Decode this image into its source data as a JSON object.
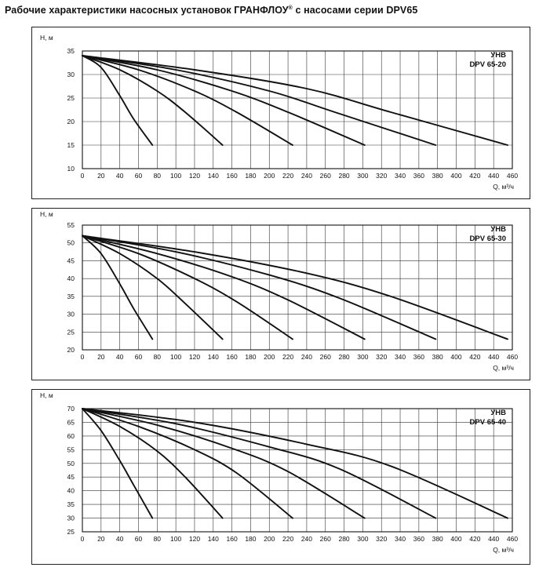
{
  "title": {
    "main": "Рабочие характеристики насосных установок  ГРАНФЛОУ",
    "mark": "®",
    "tail": " с насосами серии DPV65"
  },
  "chart_data": [
    {
      "type": "line",
      "model_line1": "УНВ",
      "model_line2": "DPV 65-20",
      "xlabel": "Q, м³/ч",
      "ylabel": "Н, м",
      "xlim": [
        0,
        460
      ],
      "ylim": [
        10,
        35
      ],
      "x_ticks": [
        0,
        20,
        40,
        60,
        80,
        100,
        120,
        140,
        160,
        180,
        200,
        220,
        240,
        260,
        280,
        300,
        320,
        340,
        360,
        380,
        400,
        420,
        440,
        460
      ],
      "y_ticks": [
        10,
        15,
        20,
        25,
        30,
        35
      ],
      "grid": true,
      "series": [
        {
          "points": [
            [
              0,
              34
            ],
            [
              20,
              31.5
            ],
            [
              40,
              25.5
            ],
            [
              55,
              20.5
            ],
            [
              75,
              15
            ]
          ]
        },
        {
          "points": [
            [
              0,
              34
            ],
            [
              40,
              31
            ],
            [
              80,
              26.5
            ],
            [
              110,
              22
            ],
            [
              150,
              15
            ]
          ]
        },
        {
          "points": [
            [
              0,
              34
            ],
            [
              60,
              31
            ],
            [
              120,
              26.5
            ],
            [
              165,
              22
            ],
            [
              225,
              15
            ]
          ]
        },
        {
          "points": [
            [
              0,
              34
            ],
            [
              80,
              31
            ],
            [
              160,
              26.5
            ],
            [
              220,
              22
            ],
            [
              302,
              15
            ]
          ]
        },
        {
          "points": [
            [
              0,
              34
            ],
            [
              100,
              31
            ],
            [
              200,
              26.5
            ],
            [
              270,
              22
            ],
            [
              378,
              15
            ]
          ]
        },
        {
          "points": [
            [
              0,
              34
            ],
            [
              120,
              31
            ],
            [
              240,
              27
            ],
            [
              330,
              22
            ],
            [
              455,
              15
            ]
          ]
        }
      ]
    },
    {
      "type": "line",
      "model_line1": "УНВ",
      "model_line2": "DPV 65-30",
      "xlabel": "Q, м³/ч",
      "ylabel": "Н, м",
      "xlim": [
        0,
        460
      ],
      "ylim": [
        20,
        55
      ],
      "x_ticks": [
        0,
        20,
        40,
        60,
        80,
        100,
        120,
        140,
        160,
        180,
        200,
        220,
        240,
        260,
        280,
        300,
        320,
        340,
        360,
        380,
        400,
        420,
        440,
        460
      ],
      "y_ticks": [
        20,
        25,
        30,
        35,
        40,
        45,
        50,
        55
      ],
      "grid": true,
      "series": [
        {
          "points": [
            [
              0,
              52
            ],
            [
              20,
              47
            ],
            [
              40,
              38.5
            ],
            [
              55,
              31.5
            ],
            [
              75,
              23
            ]
          ]
        },
        {
          "points": [
            [
              0,
              52
            ],
            [
              40,
              47
            ],
            [
              80,
              40
            ],
            [
              110,
              33
            ],
            [
              150,
              23
            ]
          ]
        },
        {
          "points": [
            [
              0,
              52
            ],
            [
              60,
              47
            ],
            [
              120,
              40
            ],
            [
              165,
              33.5
            ],
            [
              225,
              23
            ]
          ]
        },
        {
          "points": [
            [
              0,
              52
            ],
            [
              80,
              47
            ],
            [
              160,
              40.5
            ],
            [
              220,
              34
            ],
            [
              302,
              23
            ]
          ]
        },
        {
          "points": [
            [
              0,
              52
            ],
            [
              100,
              47.5
            ],
            [
              200,
              41
            ],
            [
              275,
              34.5
            ],
            [
              378,
              23
            ]
          ]
        },
        {
          "points": [
            [
              0,
              52
            ],
            [
              120,
              47.5
            ],
            [
              240,
              41.5
            ],
            [
              330,
              35
            ],
            [
              455,
              23
            ]
          ]
        }
      ]
    },
    {
      "type": "line",
      "model_line1": "УНВ",
      "model_line2": "DPV 65-40",
      "xlabel": "Q, м³/ч",
      "ylabel": "Н, м",
      "xlim": [
        0,
        460
      ],
      "ylim": [
        25,
        70
      ],
      "x_ticks": [
        0,
        20,
        40,
        60,
        80,
        100,
        120,
        140,
        160,
        180,
        200,
        220,
        240,
        260,
        280,
        300,
        320,
        340,
        360,
        380,
        400,
        420,
        440,
        460
      ],
      "y_ticks": [
        25,
        30,
        35,
        40,
        45,
        50,
        55,
        60,
        65,
        70
      ],
      "grid": true,
      "series": [
        {
          "points": [
            [
              0,
              70
            ],
            [
              20,
              62
            ],
            [
              40,
              51
            ],
            [
              55,
              42
            ],
            [
              75,
              30
            ]
          ]
        },
        {
          "points": [
            [
              0,
              70
            ],
            [
              40,
              63.5
            ],
            [
              80,
              54.5
            ],
            [
              110,
              45
            ],
            [
              150,
              30
            ]
          ]
        },
        {
          "points": [
            [
              0,
              70
            ],
            [
              60,
              63.5
            ],
            [
              120,
              55
            ],
            [
              165,
              46.5
            ],
            [
              225,
              30
            ]
          ]
        },
        {
          "points": [
            [
              0,
              70
            ],
            [
              80,
              64
            ],
            [
              160,
              55.5
            ],
            [
              220,
              47
            ],
            [
              302,
              30
            ]
          ]
        },
        {
          "points": [
            [
              0,
              70
            ],
            [
              100,
              64.5
            ],
            [
              200,
              56
            ],
            [
              275,
              48
            ],
            [
              378,
              30
            ]
          ]
        },
        {
          "points": [
            [
              0,
              70
            ],
            [
              120,
              65
            ],
            [
              240,
              57
            ],
            [
              330,
              49
            ],
            [
              455,
              30
            ]
          ]
        }
      ]
    }
  ]
}
